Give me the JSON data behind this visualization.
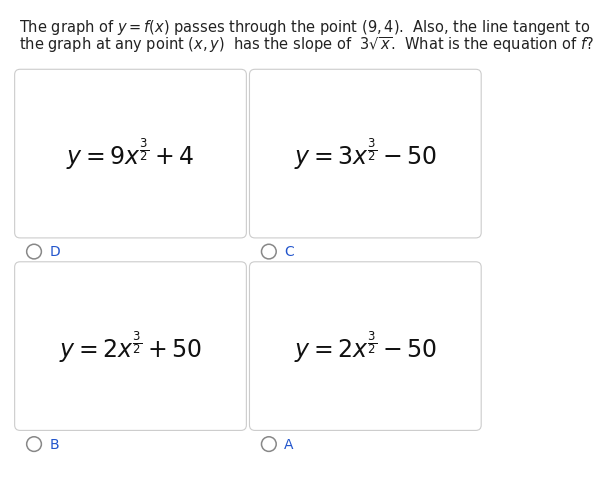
{
  "title_line1": "The graph of $y = f(x)$ passes through the point $(9,4)$.  Also, the line tangent to",
  "title_line2": "the graph at any point $(x, y)$  has the slope of  $3\\sqrt{x}$.  What is the equation of $f$?",
  "options": [
    {
      "label": "D",
      "formula": "$y = 9x^{\\frac{3}{2}} + 4$",
      "row": 0,
      "col": 0
    },
    {
      "label": "C",
      "formula": "$y = 3x^{\\frac{3}{2}} - 50$",
      "row": 0,
      "col": 1
    },
    {
      "label": "B",
      "formula": "$y = 2x^{\\frac{3}{2}} + 50$",
      "row": 1,
      "col": 0
    },
    {
      "label": "A",
      "formula": "$y = 2x^{\\frac{3}{2}} - 50$",
      "row": 1,
      "col": 1
    }
  ],
  "box_edge_color": "#cccccc",
  "box_face_color": "#ffffff",
  "bg_color": "#ffffff",
  "title_fontsize": 10.5,
  "formula_fontsize": 17,
  "label_fontsize": 10,
  "label_color": "#2255cc",
  "circle_color": "#888888"
}
